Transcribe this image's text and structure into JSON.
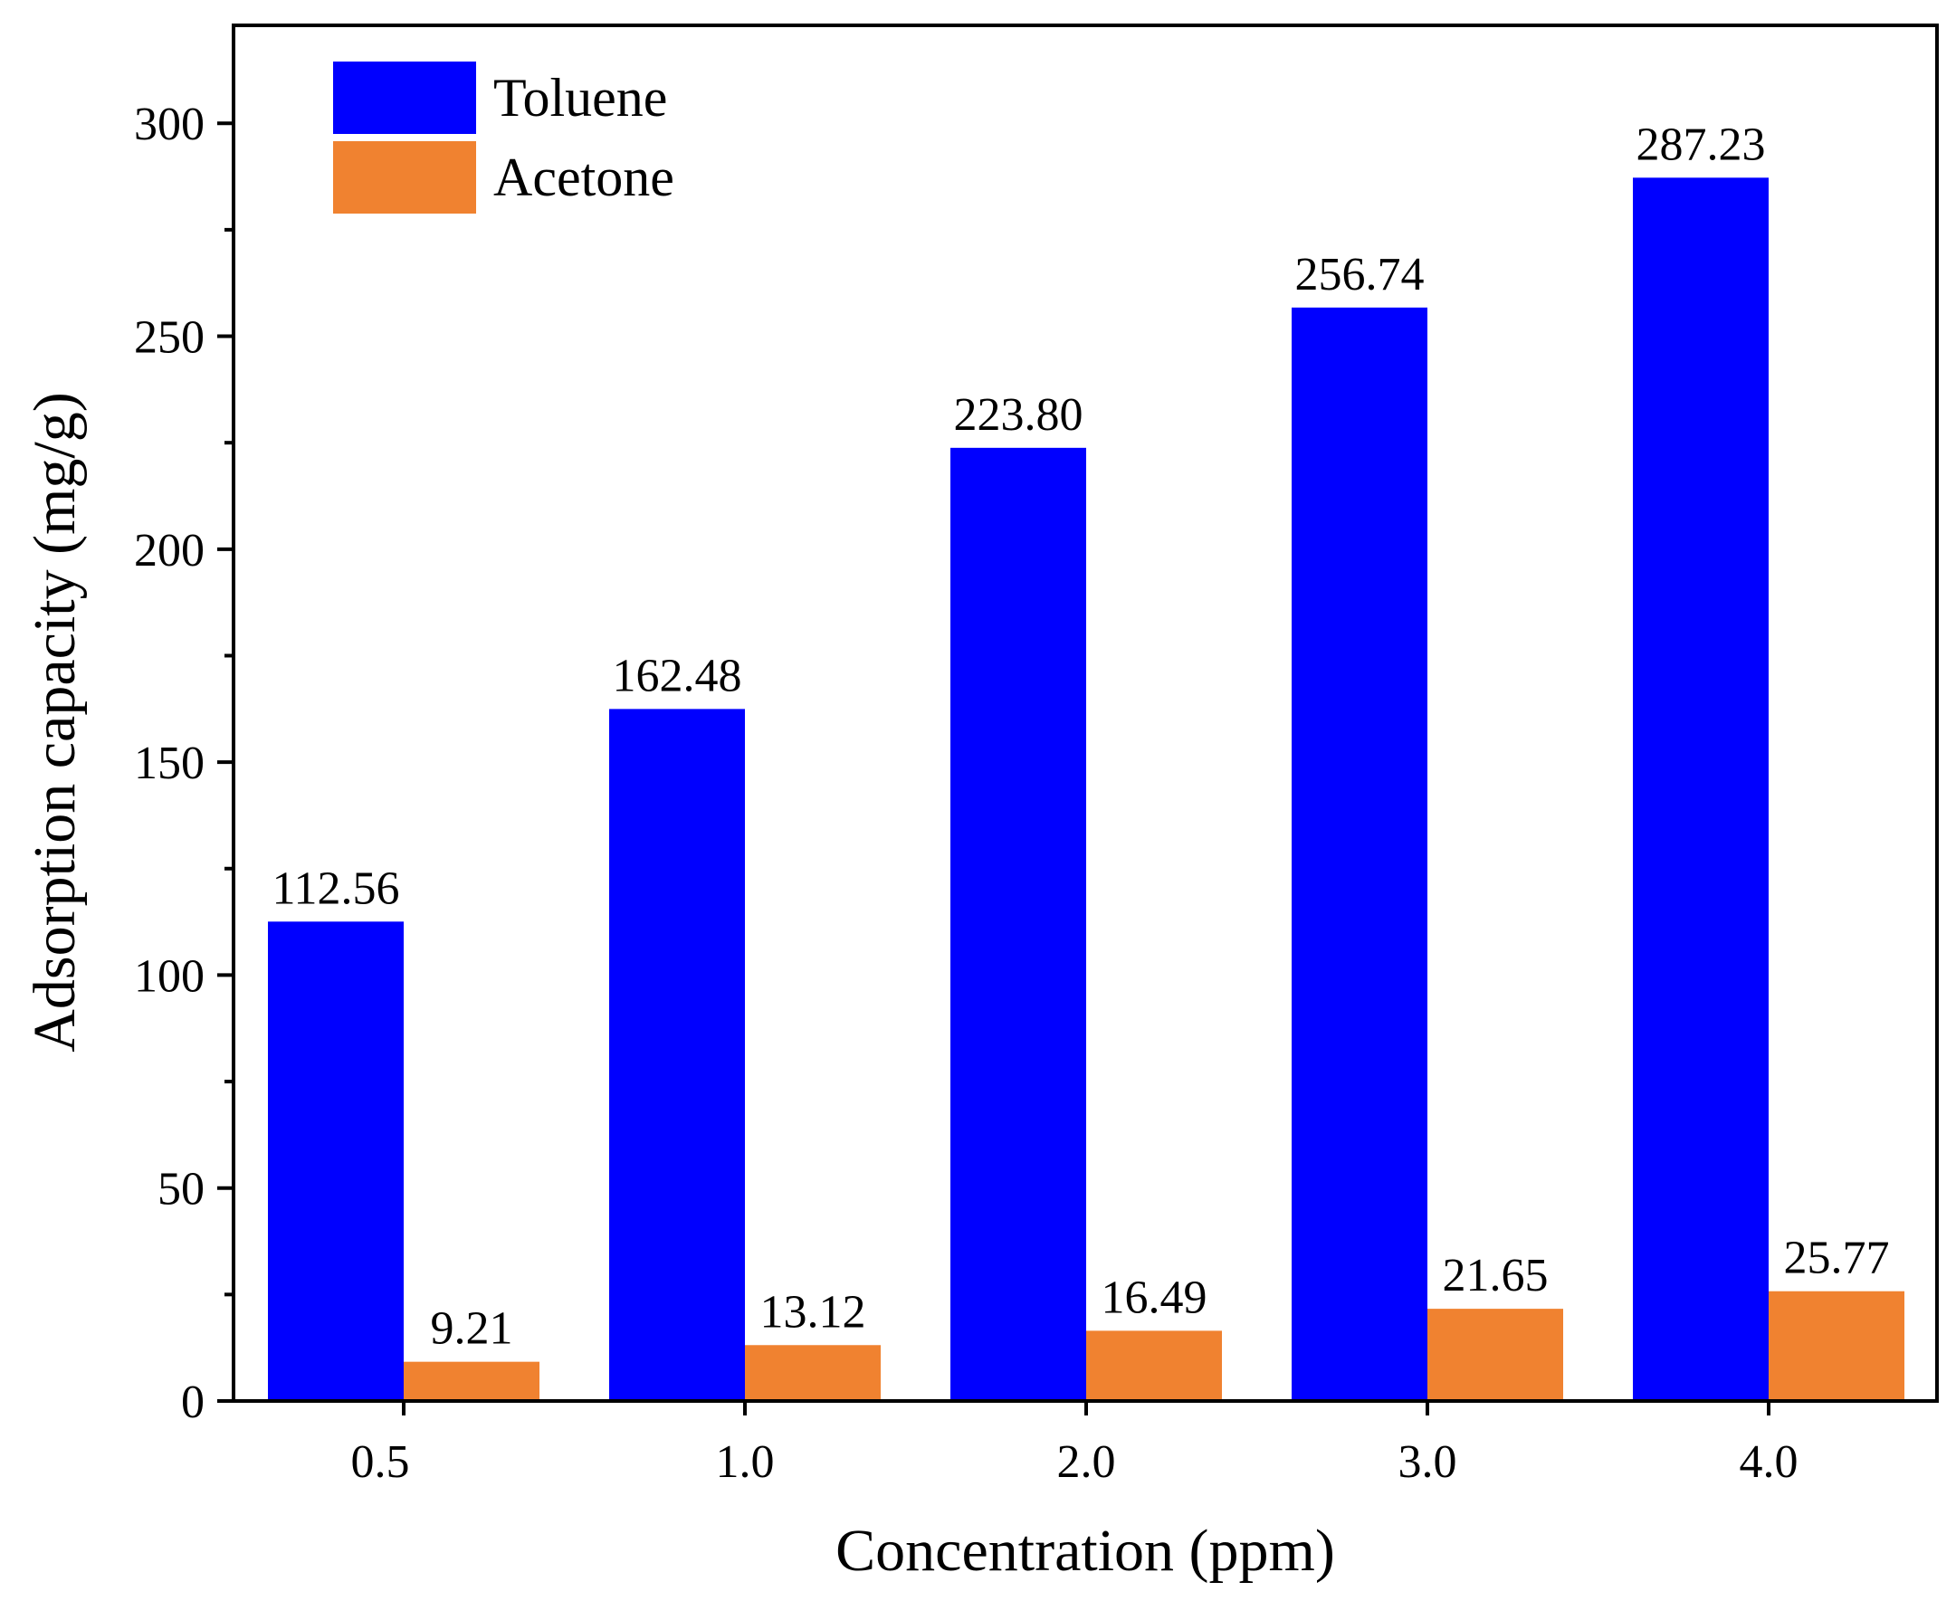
{
  "chart_data": {
    "type": "bar",
    "title": "",
    "xlabel": "Concentration (ppm)",
    "ylabel": "Adsorption capacity (mg/g)",
    "categories": [
      "0.5",
      "1.0",
      "2.0",
      "3.0",
      "4.0"
    ],
    "series": [
      {
        "name": "Toluene",
        "color": "#0000ff",
        "values": [
          112.56,
          162.48,
          223.8,
          256.74,
          287.23
        ],
        "labels": [
          "112.56",
          "162.48",
          "223.80",
          "256.74",
          "287.23"
        ]
      },
      {
        "name": "Acetone",
        "color": "#f08230",
        "values": [
          9.21,
          13.12,
          16.49,
          21.65,
          25.77
        ],
        "labels": [
          "9.21",
          "13.12",
          "16.49",
          "21.65",
          "25.77"
        ]
      }
    ],
    "ylim": [
      0,
      300
    ],
    "yticks": [
      0,
      50,
      100,
      150,
      200,
      250,
      300
    ],
    "yminor_step": 25,
    "grid": false,
    "legend_position": "top-left"
  }
}
